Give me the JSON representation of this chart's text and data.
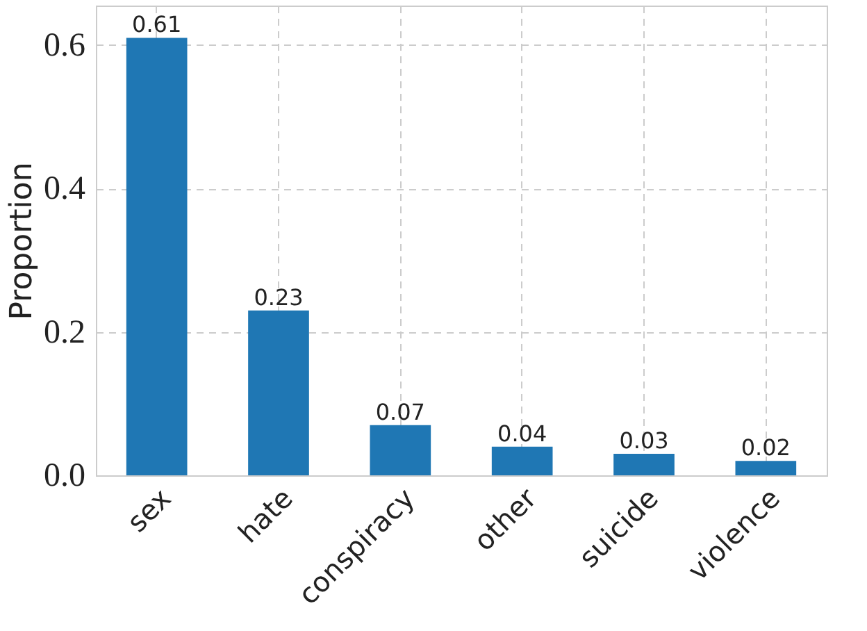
{
  "chart_data": {
    "type": "bar",
    "ylabel": "Proportion",
    "categories": [
      "sex",
      "hate",
      "conspiracy",
      "other",
      "suicide",
      "violence"
    ],
    "values": [
      0.61,
      0.23,
      0.07,
      0.04,
      0.03,
      0.02
    ],
    "color": "#1f77b4",
    "ylim": [
      0,
      0.655
    ],
    "yticks": [
      {
        "value": 0,
        "label": "0.0"
      },
      0.2,
      0.4,
      0.6
    ],
    "grid": true,
    "data_labels": true
  }
}
